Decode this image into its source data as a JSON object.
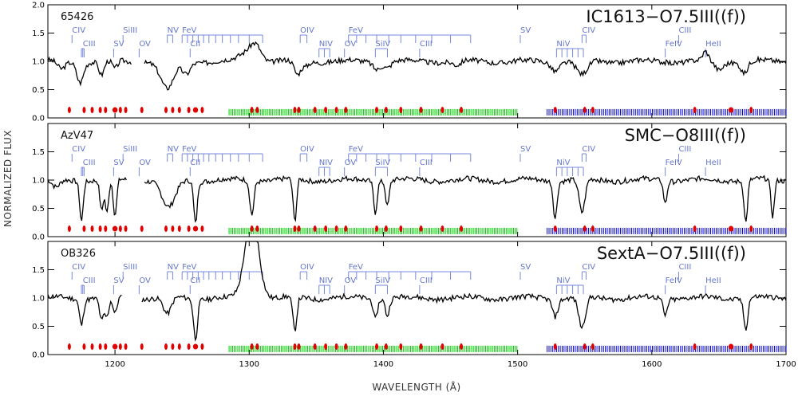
{
  "chart_data": {
    "type": "line",
    "xlabel": "WAVELENGTH (Å)",
    "ylabel": "NORMALIZED FLUX",
    "xlim": [
      1150,
      1700
    ],
    "ylim": [
      0,
      2.0
    ],
    "xticks": [
      1200,
      1300,
      1400,
      1500,
      1600,
      1700
    ],
    "yticks": [
      0.0,
      0.5,
      1.0,
      1.5,
      2.0
    ],
    "ytick_labels": [
      "0.0",
      "0.5",
      "1.0",
      "1.5",
      "2.0"
    ],
    "top_ytick_labels": [
      "0.0",
      "0.5",
      "1.0",
      "1.5",
      "2.0"
    ],
    "colors": {
      "spectrum": "#000000",
      "ions": "#7788dd",
      "red_marks": "#e00000",
      "green_marks": "#00cc00",
      "blue_marks": "#0000cc"
    },
    "ions": [
      {
        "label": "CIV",
        "x": 1168,
        "row": 0,
        "group": [
          1168
        ]
      },
      {
        "label": "CIII",
        "x": 1176,
        "row": 1,
        "group": [
          1175,
          1176,
          1177
        ]
      },
      {
        "label": "SV",
        "x": 1199,
        "row": 1,
        "group": [
          1199
        ]
      },
      {
        "label": "SiIII",
        "x": 1206,
        "row": 0,
        "group": [
          1206
        ]
      },
      {
        "label": "OV",
        "x": 1218,
        "row": 1,
        "group": [
          1218
        ]
      },
      {
        "label": "NV",
        "x": 1239,
        "row": 0,
        "group": [
          1239,
          1243
        ]
      },
      {
        "label": "FeV",
        "x": 1250,
        "row": 0,
        "group": [
          1250,
          1254,
          1258,
          1262,
          1266,
          1270,
          1275,
          1280,
          1286,
          1292,
          1300,
          1310
        ]
      },
      {
        "label": "CII",
        "x": 1256,
        "row": 1,
        "group": [
          1256
        ]
      },
      {
        "label": "OIV",
        "x": 1338,
        "row": 0,
        "group": [
          1338,
          1343
        ]
      },
      {
        "label": "NIV",
        "x": 1352,
        "row": 1,
        "group": [
          1352,
          1356,
          1360
        ]
      },
      {
        "label": "FeV",
        "x": 1374,
        "row": 0,
        "group": [
          1374,
          1380,
          1387,
          1395,
          1404,
          1413,
          1424,
          1436,
          1450,
          1465
        ]
      },
      {
        "label": "OV",
        "x": 1371,
        "row": 1,
        "group": [
          1371
        ]
      },
      {
        "label": "SiIV",
        "x": 1394,
        "row": 1,
        "group": [
          1394,
          1403
        ]
      },
      {
        "label": "CIII",
        "x": 1427,
        "row": 1,
        "group": [
          1427
        ]
      },
      {
        "label": "SV",
        "x": 1502,
        "row": 0,
        "group": [
          1502
        ]
      },
      {
        "label": "NiV",
        "x": 1529,
        "row": 1,
        "group": [
          1529,
          1533,
          1537,
          1541,
          1545,
          1549
        ]
      },
      {
        "label": "CIV",
        "x": 1548,
        "row": 0,
        "group": [
          1548,
          1551
        ]
      },
      {
        "label": "FeIV",
        "x": 1610,
        "row": 1,
        "group": [
          1610
        ]
      },
      {
        "label": "CIII",
        "x": 1620,
        "row": 0,
        "group": [
          1620
        ]
      },
      {
        "label": "HeII",
        "x": 1640,
        "row": 1,
        "group": [
          1640
        ]
      }
    ],
    "marks": {
      "red": [
        1166,
        1177,
        1183,
        1189,
        1193,
        1200,
        1204,
        1208,
        1220,
        1238,
        1243,
        1248,
        1255,
        1260,
        1265,
        1302,
        1306,
        1334,
        1337,
        1349,
        1357,
        1365,
        1372,
        1395,
        1402,
        1413,
        1428,
        1444,
        1458,
        1528,
        1550,
        1556,
        1632,
        1659,
        1674
      ],
      "red_big": [
        1200,
        1260,
        1659
      ],
      "green_range": [
        1285,
        1500
      ],
      "blue_range": [
        1522,
        1700
      ]
    },
    "panels": [
      {
        "star": "65426",
        "title": "IC1613−O7.5III((f))",
        "gap": [
          1213,
          1222
        ],
        "features": [
          [
            1160,
            0.15,
            3
          ],
          [
            1174,
            0.35,
            2.5
          ],
          [
            1190,
            0.25,
            2
          ],
          [
            1200,
            0.15,
            2
          ],
          [
            1239,
            0.5,
            5
          ],
          [
            1253,
            0.22,
            3
          ],
          [
            1299,
            -0.15,
            6
          ],
          [
            1305,
            -0.25,
            4
          ],
          [
            1336,
            0.25,
            2.5
          ],
          [
            1342,
            0.08,
            2
          ],
          [
            1395,
            0.12,
            2.5
          ],
          [
            1403,
            0.1,
            2.5
          ],
          [
            1455,
            0.08,
            3
          ],
          [
            1528,
            0.15,
            3
          ],
          [
            1548,
            0.25,
            4
          ],
          [
            1640,
            -0.15,
            2
          ],
          [
            1650,
            0.15,
            3
          ],
          [
            1669,
            0.2,
            2.5
          ]
        ],
        "seed": 3
      },
      {
        "star": "AzV47",
        "title": "SMC−O8III((f))",
        "gap": [
          1209,
          1222
        ],
        "features": [
          [
            1156,
            0.15,
            3
          ],
          [
            1175,
            0.7,
            1.3
          ],
          [
            1190,
            0.55,
            1.3
          ],
          [
            1194,
            0.6,
            1.3
          ],
          [
            1200,
            0.65,
            1.3
          ],
          [
            1240,
            0.5,
            5
          ],
          [
            1260,
            0.75,
            1.3
          ],
          [
            1302,
            0.6,
            1.5
          ],
          [
            1334,
            0.75,
            1.3
          ],
          [
            1394,
            0.55,
            1.3
          ],
          [
            1403,
            0.45,
            1.3
          ],
          [
            1528,
            0.65,
            1.4
          ],
          [
            1548,
            0.6,
            2.2
          ],
          [
            1610,
            0.4,
            1.3
          ],
          [
            1670,
            0.75,
            1.3
          ],
          [
            1690,
            0.65,
            1.3
          ]
        ],
        "seed": 7
      },
      {
        "star": "OB326",
        "title": "SextA−O7.5III((f))",
        "gap": [
          1205,
          1220
        ],
        "features": [
          [
            1175,
            0.45,
            1.5
          ],
          [
            1190,
            0.4,
            1.5
          ],
          [
            1194,
            0.35,
            1.5
          ],
          [
            1200,
            0.3,
            1.5
          ],
          [
            1239,
            0.3,
            3
          ],
          [
            1260,
            0.7,
            1.5
          ],
          [
            1302,
            -1.5,
            5
          ],
          [
            1334,
            0.6,
            1.5
          ],
          [
            1394,
            0.35,
            1.5
          ],
          [
            1403,
            0.3,
            1.5
          ],
          [
            1528,
            0.3,
            2
          ],
          [
            1548,
            0.55,
            2.5
          ],
          [
            1610,
            0.3,
            1.5
          ],
          [
            1670,
            0.55,
            1.5
          ]
        ],
        "seed": 11
      }
    ]
  }
}
